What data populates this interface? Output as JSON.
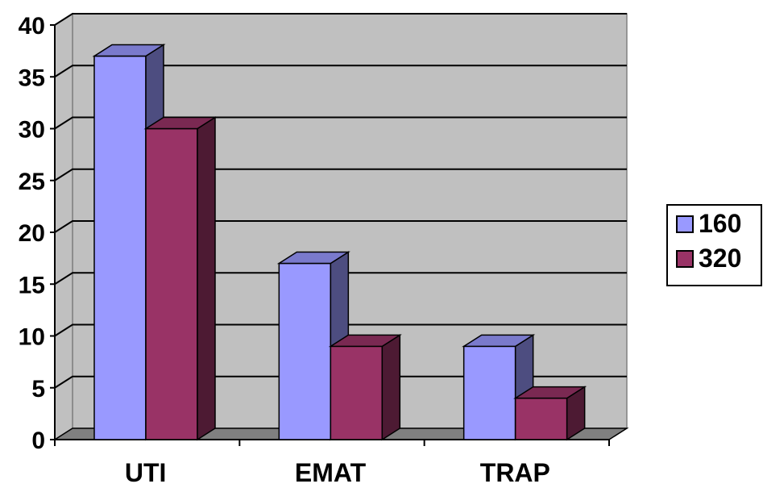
{
  "chart_data": {
    "type": "bar",
    "style": "3d-clustered-column",
    "categories": [
      "UTI",
      "EMAT",
      "TRAP"
    ],
    "series": [
      {
        "name": "160",
        "values": [
          37,
          17,
          9
        ],
        "color": "#9999ff",
        "side_color": "#4d4d80",
        "top_color": "#7a7acc"
      },
      {
        "name": "320",
        "values": [
          30,
          9,
          4
        ],
        "color": "#993366",
        "side_color": "#4d1a33",
        "top_color": "#7a2952"
      }
    ],
    "ylim": [
      0,
      40
    ],
    "yticks": [
      "0",
      "5",
      "10",
      "15",
      "20",
      "25",
      "30",
      "35",
      "40"
    ],
    "grid": true,
    "legend_position": "right",
    "wall_color": "#c0c0c0",
    "floor_color": "#808080"
  }
}
